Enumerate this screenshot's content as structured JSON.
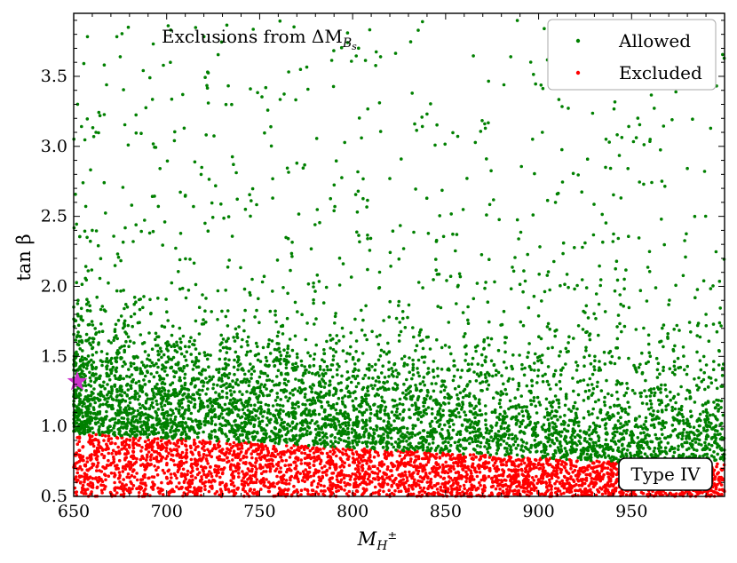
{
  "chart_data": {
    "type": "scatter",
    "title": "",
    "annotation": "Exclusions from ΔM",
    "annotation_sub": "B",
    "annotation_subsub": "s",
    "xlabel": "M",
    "xlabel_sub": "H",
    "xlabel_sup": "±",
    "ylabel": "tan β",
    "xlim": [
      650,
      1000
    ],
    "ylim": [
      0.5,
      3.95
    ],
    "x_ticks": [
      "650",
      "700",
      "750",
      "800",
      "850",
      "900",
      "950"
    ],
    "y_ticks": [
      "0.5",
      "1.0",
      "1.5",
      "2.0",
      "2.5",
      "3.0",
      "3.5"
    ],
    "panel_label": "Type IV",
    "legend_position": "top-right",
    "series": [
      {
        "name": "Allowed",
        "color": "#008000",
        "sample_points": [
          [
            675,
            3.64
          ],
          [
            702,
            3.6
          ],
          [
            722,
            3.53
          ],
          [
            745,
            3.41
          ],
          [
            815,
            3.64
          ],
          [
            885,
            3.64
          ],
          [
            832,
            3.38
          ],
          [
            662,
            3.1
          ],
          [
            902,
            3.1
          ],
          [
            938,
            3.03
          ],
          [
            960,
            3.05
          ],
          [
            756,
            3.14
          ],
          [
            699,
            2.46
          ],
          [
            770,
            2.88
          ],
          [
            803,
            2.68
          ],
          [
            820,
            2.77
          ],
          [
            872,
            2.51
          ],
          [
            897,
            2.51
          ],
          [
            910,
            2.66
          ],
          [
            966,
            2.48
          ],
          [
            682,
            2.32
          ],
          [
            808,
            2.12
          ],
          [
            856,
            2.37
          ],
          [
            940,
            2.32
          ],
          [
            979,
            2.21
          ],
          [
            963,
            1.99
          ],
          [
            990,
            1.8
          ],
          [
            655,
            2.74
          ],
          [
            660,
            2.4
          ],
          [
            757,
            2.63
          ],
          [
            790,
            2.54
          ],
          [
            845,
            2.32
          ],
          [
            925,
            2.31
          ],
          [
            640,
            3.5
          ]
        ]
      },
      {
        "name": "Excluded",
        "color": "#ff0000",
        "sample_points": [
          [
            652,
            0.92
          ],
          [
            680,
            0.85
          ],
          [
            720,
            0.8
          ],
          [
            760,
            0.72
          ],
          [
            800,
            0.66
          ],
          [
            850,
            0.6
          ],
          [
            900,
            0.62
          ],
          [
            950,
            0.58
          ],
          [
            990,
            0.55
          ]
        ]
      }
    ],
    "regions": {
      "allowed_dense": "0.85 to ~2.2 across full mass range",
      "excluded_upper_boundary": [
        [
          650,
          0.95
        ],
        [
          700,
          0.9
        ],
        [
          750,
          0.86
        ],
        [
          800,
          0.83
        ],
        [
          850,
          0.8
        ],
        [
          900,
          0.77
        ],
        [
          950,
          0.75
        ],
        [
          1000,
          0.74
        ]
      ]
    },
    "benchmark_marker": {
      "shape": "star",
      "color": "#cc33cc",
      "x": 650,
      "y": 1.32
    },
    "grid": false
  }
}
